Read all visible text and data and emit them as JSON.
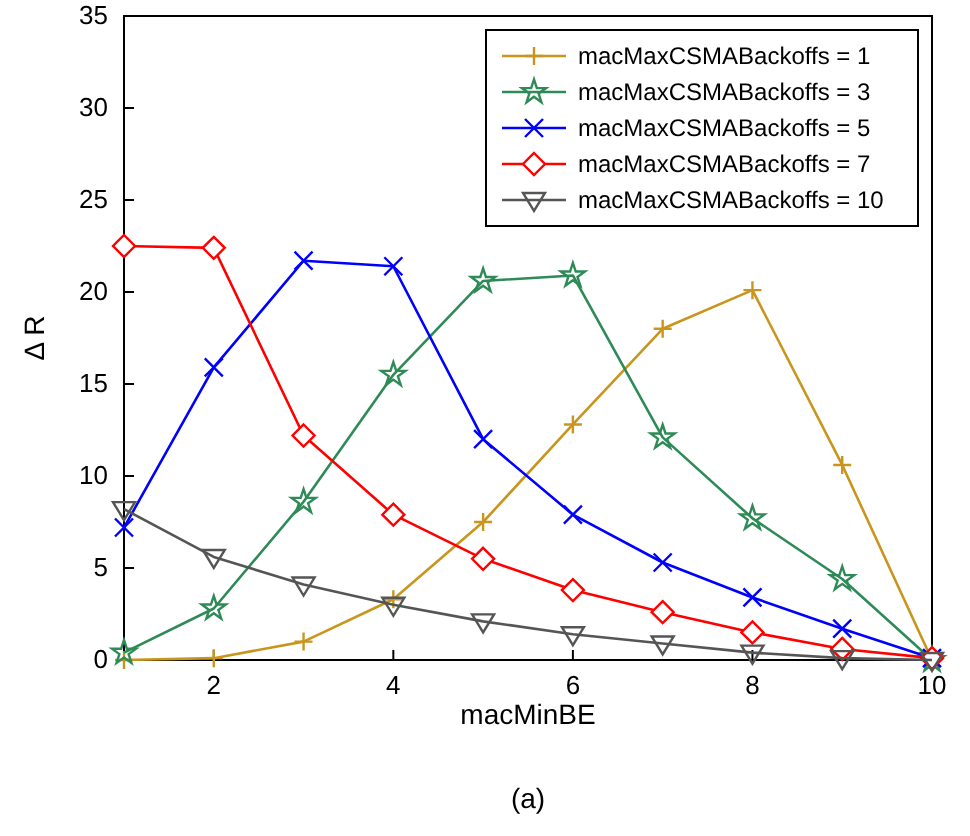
{
  "chart_data": {
    "type": "line",
    "xlabel": "macMinBE",
    "ylabel": "Δ R",
    "annotations": [
      "(a)"
    ],
    "x": [
      1,
      2,
      3,
      4,
      5,
      6,
      7,
      8,
      9,
      10
    ],
    "xlim": [
      1,
      10
    ],
    "xticks": [
      2,
      4,
      6,
      8,
      10
    ],
    "ylim": [
      0,
      35
    ],
    "yticks": [
      0,
      5,
      10,
      15,
      20,
      25,
      30,
      35
    ],
    "grid": false,
    "legend": "top right",
    "line_style": "solid",
    "series": [
      {
        "name": "macMaxCSMABackoffs = 1",
        "color": "#c8961e",
        "marker": "cross",
        "values": [
          0,
          0.1,
          1.0,
          3.3,
          7.5,
          12.8,
          18,
          20.1,
          10.6,
          0
        ]
      },
      {
        "name": "macMaxCSMABackoffs = 3",
        "color": "#2e8b57",
        "marker": "star",
        "values": [
          0.4,
          2.8,
          8.6,
          15.5,
          20.6,
          20.9,
          12.1,
          7.7,
          4.4,
          0
        ]
      },
      {
        "name": "macMaxCSMABackoffs = 5",
        "color": "#0000ff",
        "marker": "cross",
        "values": [
          7.2,
          15.9,
          21.7,
          21.4,
          12.0,
          7.9,
          5.3,
          3.4,
          1.7,
          0.1
        ]
      },
      {
        "name": "macMaxCSMABackoffs = 7",
        "color": "#ff0000",
        "marker": "diamond",
        "values": [
          22.5,
          22.4,
          12.2,
          7.9,
          5.5,
          3.8,
          2.6,
          1.5,
          0.6,
          0.1
        ]
      },
      {
        "name": "macMaxCSMABackoffs = 10",
        "color": "#555555",
        "marker": "triangle",
        "values": [
          8.2,
          5.6,
          4.1,
          3.0,
          2.1,
          1.4,
          0.9,
          0.4,
          0.1,
          0
        ]
      }
    ]
  }
}
